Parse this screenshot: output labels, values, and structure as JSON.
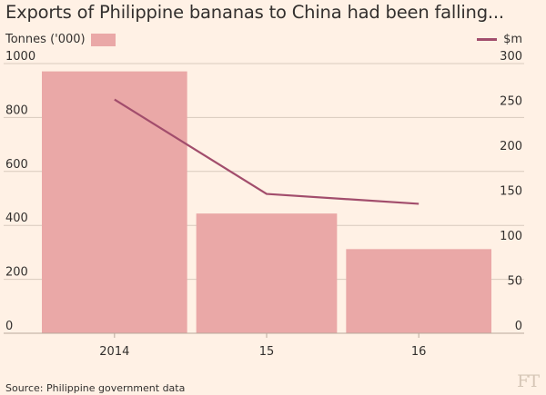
{
  "title": "Exports of Philippine bananas to China had been falling...",
  "legend": {
    "bars_label": "Tonnes ('000)",
    "line_label": "$m"
  },
  "source": "Source: Philippine government data",
  "logo": "FT",
  "colors": {
    "background": "#fff1e5",
    "bar": "#eaa8a7",
    "line": "#a24d6c",
    "grid": "#d8cabd",
    "text": "#33302e"
  },
  "chart_data": {
    "type": "bar",
    "categories": [
      "2014",
      "15",
      "16"
    ],
    "series": [
      {
        "name": "Tonnes ('000)",
        "type": "bar",
        "axis": "left",
        "values": [
          971,
          444,
          312
        ]
      },
      {
        "name": "$m",
        "type": "line",
        "axis": "right",
        "values": [
          260,
          155,
          144
        ]
      }
    ],
    "y_left": {
      "min": 0,
      "max": 1000,
      "ticks": [
        0,
        200,
        400,
        600,
        800,
        1000
      ]
    },
    "y_right": {
      "min": 0,
      "max": 300,
      "ticks": [
        0,
        50,
        100,
        150,
        200,
        250,
        300
      ]
    },
    "grid": true,
    "xlabel": "",
    "ylabel": ""
  }
}
